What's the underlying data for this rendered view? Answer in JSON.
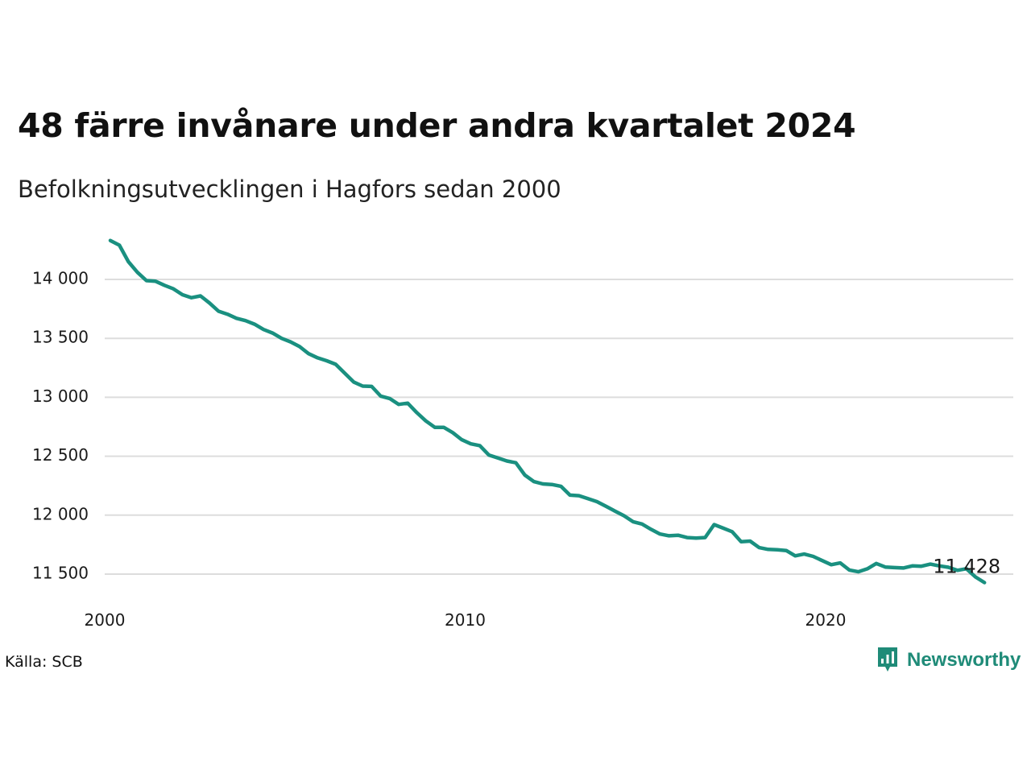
{
  "header": {
    "title": "48 färre invånare under andra kvartalet 2024",
    "subtitle": "Befolkningsutvecklingen i Hagfors sedan 2000"
  },
  "footer": {
    "source": "Källa: SCB",
    "brand": "Newsworthy"
  },
  "colors": {
    "line": "#1a9080",
    "grid": "#dddddd",
    "brand": "#1f8b78"
  },
  "chart_data": {
    "type": "line",
    "title": "48 färre invånare under andra kvartalet 2024",
    "subtitle": "Befolkningsutvecklingen i Hagfors sedan 2000",
    "xlabel": "",
    "ylabel": "",
    "x_ticks": [
      "2000",
      "2010",
      "2020"
    ],
    "y_ticks": [
      "11 500",
      "12 000",
      "12 500",
      "13 000",
      "13 500",
      "14 000"
    ],
    "ylim": [
      11250,
      14400
    ],
    "grid": "horizontal",
    "end_label": "11 428",
    "series": [
      {
        "x": [
          "2000-Q1",
          "2000-Q2",
          "2000-Q3",
          "2000-Q4",
          "2001-Q1",
          "2001-Q2",
          "2001-Q3",
          "2001-Q4",
          "2002-Q1",
          "2002-Q2",
          "2002-Q3",
          "2002-Q4",
          "2003-Q1",
          "2003-Q2",
          "2003-Q3",
          "2003-Q4",
          "2004-Q1",
          "2004-Q2",
          "2004-Q3",
          "2004-Q4",
          "2005-Q1",
          "2005-Q2",
          "2005-Q3",
          "2005-Q4",
          "2006-Q1",
          "2006-Q2",
          "2006-Q3",
          "2006-Q4",
          "2007-Q1",
          "2007-Q2",
          "2007-Q3",
          "2007-Q4",
          "2008-Q1",
          "2008-Q2",
          "2008-Q3",
          "2008-Q4",
          "2009-Q1",
          "2009-Q2",
          "2009-Q3",
          "2009-Q4",
          "2010-Q1",
          "2010-Q2",
          "2010-Q3",
          "2010-Q4",
          "2011-Q1",
          "2011-Q2",
          "2011-Q3",
          "2011-Q4",
          "2012-Q1",
          "2012-Q2",
          "2012-Q3",
          "2012-Q4",
          "2013-Q1",
          "2013-Q2",
          "2013-Q3",
          "2013-Q4",
          "2014-Q1",
          "2014-Q2",
          "2014-Q3",
          "2014-Q4",
          "2015-Q1",
          "2015-Q2",
          "2015-Q3",
          "2015-Q4",
          "2016-Q1",
          "2016-Q2",
          "2016-Q3",
          "2016-Q4",
          "2017-Q1",
          "2017-Q2",
          "2017-Q3",
          "2017-Q4",
          "2018-Q1",
          "2018-Q2",
          "2018-Q3",
          "2018-Q4",
          "2019-Q1",
          "2019-Q2",
          "2019-Q3",
          "2019-Q4",
          "2020-Q1",
          "2020-Q2",
          "2020-Q3",
          "2020-Q4",
          "2021-Q1",
          "2021-Q2",
          "2021-Q3",
          "2021-Q4",
          "2022-Q1",
          "2022-Q2",
          "2022-Q3",
          "2022-Q4",
          "2023-Q1",
          "2023-Q2",
          "2023-Q3",
          "2023-Q4",
          "2024-Q1",
          "2024-Q2"
        ],
        "values": [
          14330,
          14290,
          14150,
          14060,
          13990,
          13985,
          13950,
          13920,
          13870,
          13845,
          13860,
          13800,
          13730,
          13705,
          13670,
          13650,
          13620,
          13575,
          13545,
          13500,
          13470,
          13430,
          13370,
          13335,
          13310,
          13280,
          13205,
          13130,
          13095,
          13092,
          13010,
          12990,
          12940,
          12950,
          12870,
          12800,
          12745,
          12745,
          12700,
          12640,
          12605,
          12590,
          12510,
          12485,
          12460,
          12445,
          12340,
          12285,
          12265,
          12260,
          12245,
          12170,
          12165,
          12140,
          12115,
          12075,
          12035,
          11995,
          11945,
          11925,
          11880,
          11840,
          11825,
          11830,
          11810,
          11805,
          11810,
          11920,
          11890,
          11860,
          11775,
          11780,
          11725,
          11710,
          11707,
          11700,
          11655,
          11670,
          11650,
          11615,
          11580,
          11595,
          11535,
          11520,
          11545,
          11590,
          11560,
          11555,
          11552,
          11570,
          11567,
          11585,
          11570,
          11558,
          11532,
          11546,
          11476,
          11428
        ]
      }
    ]
  }
}
